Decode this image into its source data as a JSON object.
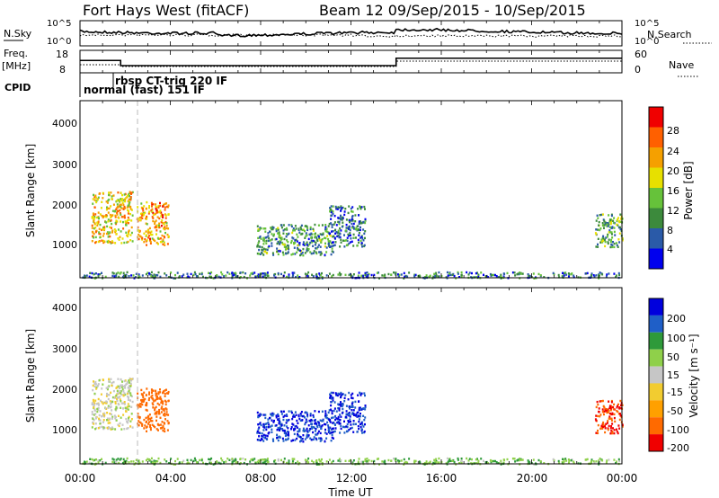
{
  "header": {
    "station": "Fort Hays West (fitACF)",
    "beam_and_date": "Beam 12  09/Sep/2015 - 10/Sep/2015"
  },
  "status_panels": {
    "nsky_label": "N.Sky",
    "nsky_ticks": [
      "10^5",
      "10^0"
    ],
    "nsearch_label": "N.Search",
    "nsearch_ticks": [
      "10^5",
      "10^0"
    ],
    "freq_label_line1": "Freq.",
    "freq_label_line2": "[MHz]",
    "freq_ticks": [
      "18",
      "8"
    ],
    "nave_label": "Nave",
    "nave_ticks": [
      "60",
      "0"
    ],
    "cpid_label": "CPID",
    "cpid_segments": [
      "normal (fast) 151 IF",
      "rbsp CT-trig 220 IF"
    ]
  },
  "panels": {
    "power": {
      "ylabel": "Slant Range [km]",
      "yticks": [
        "4000",
        "3000",
        "2000",
        "1000"
      ],
      "colorbar_label": "Power [dB]",
      "colorbar_ticks": [
        "28",
        "24",
        "20",
        "16",
        "12",
        "8",
        "4"
      ]
    },
    "velocity": {
      "ylabel": "Slant Range [km]",
      "yticks": [
        "4000",
        "3000",
        "2000",
        "1000"
      ],
      "colorbar_label": "Velocity [m s⁻¹]",
      "colorbar_ticks": [
        "200",
        "100",
        "50",
        "15",
        "-15",
        "-50",
        "-100",
        "-200"
      ]
    }
  },
  "xaxis": {
    "label": "Time UT",
    "ticks": [
      "00:00",
      "04:00",
      "08:00",
      "12:00",
      "16:00",
      "20:00",
      "00:00"
    ]
  },
  "chart_data": {
    "type": "heatmap",
    "title": "Fort Hays West (fitACF)",
    "subtitle": "Beam 12  09/Sep/2015 - 10/Sep/2015",
    "xlabel": "Time UT",
    "ylabel": "Slant Range [km]",
    "xlim": [
      0,
      24
    ],
    "ylim": [
      180,
      4500
    ],
    "frequency_mhz": [
      {
        "start": 0,
        "end": 1.8,
        "value": 13.5
      },
      {
        "start": 1.8,
        "end": 14,
        "value": 11.2
      },
      {
        "start": 14,
        "end": 24,
        "value": 14.5
      }
    ],
    "cpid_segments": [
      {
        "start": 0,
        "end": 2.5,
        "name": "normal (fast) 151 IF"
      },
      {
        "start": 2.5,
        "end": 24,
        "name": "rbsp CT-trig 220 IF"
      }
    ],
    "colors": {
      "power_scale": [
        "#0000ee",
        "#2a5aa8",
        "#3c8a3c",
        "#66c23a",
        "#e7e000",
        "#f5a000",
        "#ff6000",
        "#f00000"
      ],
      "velocity_scale": [
        "#f00000",
        "#ff6a00",
        "#ffa000",
        "#f2cc30",
        "#c6c6c6",
        "#8fd04a",
        "#2e9a3a",
        "#1f5fc8",
        "#0000dd"
      ]
    },
    "scatter_regions": [
      {
        "t": [
          0.5,
          2.3
        ],
        "r": [
          1050,
          2300
        ],
        "power_db": 22,
        "velocity": 0
      },
      {
        "t": [
          2.5,
          3.9
        ],
        "r": [
          1000,
          2050
        ],
        "power_db": 24,
        "velocity": -150
      },
      {
        "t": [
          7.8,
          11.2
        ],
        "r": [
          750,
          1500
        ],
        "power_db": 12,
        "velocity": 200
      },
      {
        "t": [
          11.0,
          12.6
        ],
        "r": [
          950,
          1950
        ],
        "power_db": 10,
        "velocity": 200
      },
      {
        "t": [
          22.8,
          24.0
        ],
        "r": [
          950,
          1750
        ],
        "power_db": 14,
        "velocity": -200
      },
      {
        "t": [
          0,
          24
        ],
        "r": [
          190,
          340
        ],
        "power_db": 10,
        "velocity": 40
      }
    ]
  }
}
